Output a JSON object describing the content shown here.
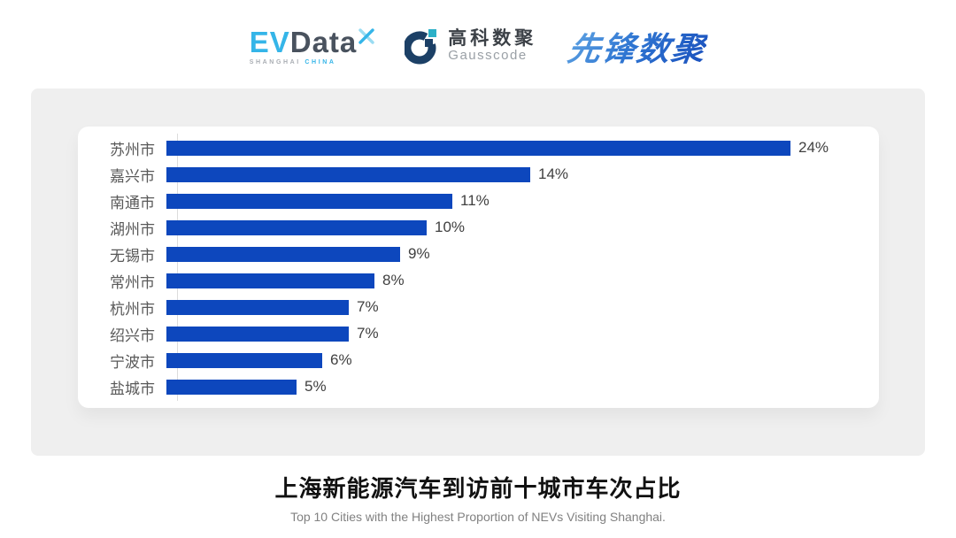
{
  "header": {
    "evdata": {
      "ev": "EV",
      "data": "Data",
      "sub_left": "SHANGHAI",
      "sub_right": "CHINA"
    },
    "gausscode": {
      "cn": "高科数聚",
      "en": "Gausscode"
    },
    "xianfeng": {
      "text": "先锋数聚"
    }
  },
  "chart_data": {
    "type": "bar",
    "orientation": "horizontal",
    "categories": [
      "苏州市",
      "嘉兴市",
      "南通市",
      "湖州市",
      "无锡市",
      "常州市",
      "杭州市",
      "绍兴市",
      "宁波市",
      "盐城市"
    ],
    "values": [
      24,
      14,
      11,
      10,
      9,
      8,
      7,
      7,
      6,
      5
    ],
    "value_labels": [
      "24%",
      "14%",
      "11%",
      "10%",
      "9%",
      "8%",
      "7%",
      "7%",
      "6%",
      "5%"
    ],
    "value_suffix": "%",
    "title": "上海新能源汽车到访前十城市车次占比",
    "subtitle": "Top 10 Cities with the Highest Proportion of  NEVs Visiting Shanghai.",
    "xlabel": "",
    "ylabel": "",
    "xlim": [
      0,
      24
    ],
    "grid": false,
    "legend": false,
    "bar_color": "#0d47bd"
  },
  "colors": {
    "panel_bg": "#efefef",
    "card_bg": "#ffffff",
    "bar": "#0d47bd",
    "axis_line": "#dcdcdc",
    "city_label": "#595959",
    "value_label": "#404040",
    "title": "#111111",
    "subtitle": "#818181",
    "evdata_blue": "#35b5e8",
    "evdata_dark": "#49525e",
    "gauss_navy": "#1c4066",
    "gauss_teal": "#2cb0c8",
    "xianfeng_blue": "#2f76d2"
  }
}
